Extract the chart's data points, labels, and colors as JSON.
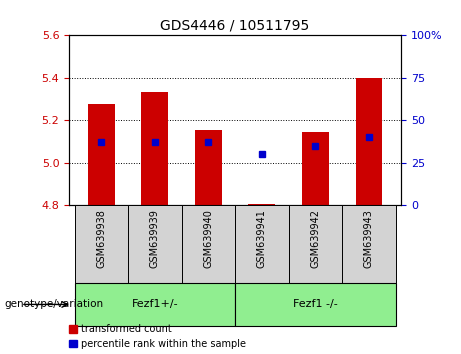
{
  "title": "GDS4446 / 10511795",
  "samples": [
    "GSM639938",
    "GSM639939",
    "GSM639940",
    "GSM639941",
    "GSM639942",
    "GSM639943"
  ],
  "bar_values": [
    5.275,
    5.335,
    5.155,
    4.805,
    5.145,
    5.4
  ],
  "bar_bottom": 4.8,
  "percentile_values": [
    37,
    37,
    37,
    30,
    35,
    40
  ],
  "ylim_left": [
    4.8,
    5.6
  ],
  "ylim_right": [
    0,
    100
  ],
  "yticks_left": [
    4.8,
    5.0,
    5.2,
    5.4,
    5.6
  ],
  "yticks_right": [
    0,
    25,
    50,
    75,
    100
  ],
  "bar_color": "#cc0000",
  "percentile_color": "#0000cc",
  "legend_items": [
    {
      "label": "transformed count",
      "color": "#cc0000"
    },
    {
      "label": "percentile rank within the sample",
      "color": "#0000cc"
    }
  ],
  "tick_label_color_left": "#cc0000",
  "tick_label_color_right": "#0000cc",
  "bar_width": 0.5,
  "figsize": [
    4.61,
    3.54
  ],
  "dpi": 100,
  "group1_label": "Fezf1+/-",
  "group2_label": "Fezf1 -/-",
  "group_color": "#90ee90",
  "genotype_label": "genotype/variation",
  "sample_box_color": "#d3d3d3"
}
